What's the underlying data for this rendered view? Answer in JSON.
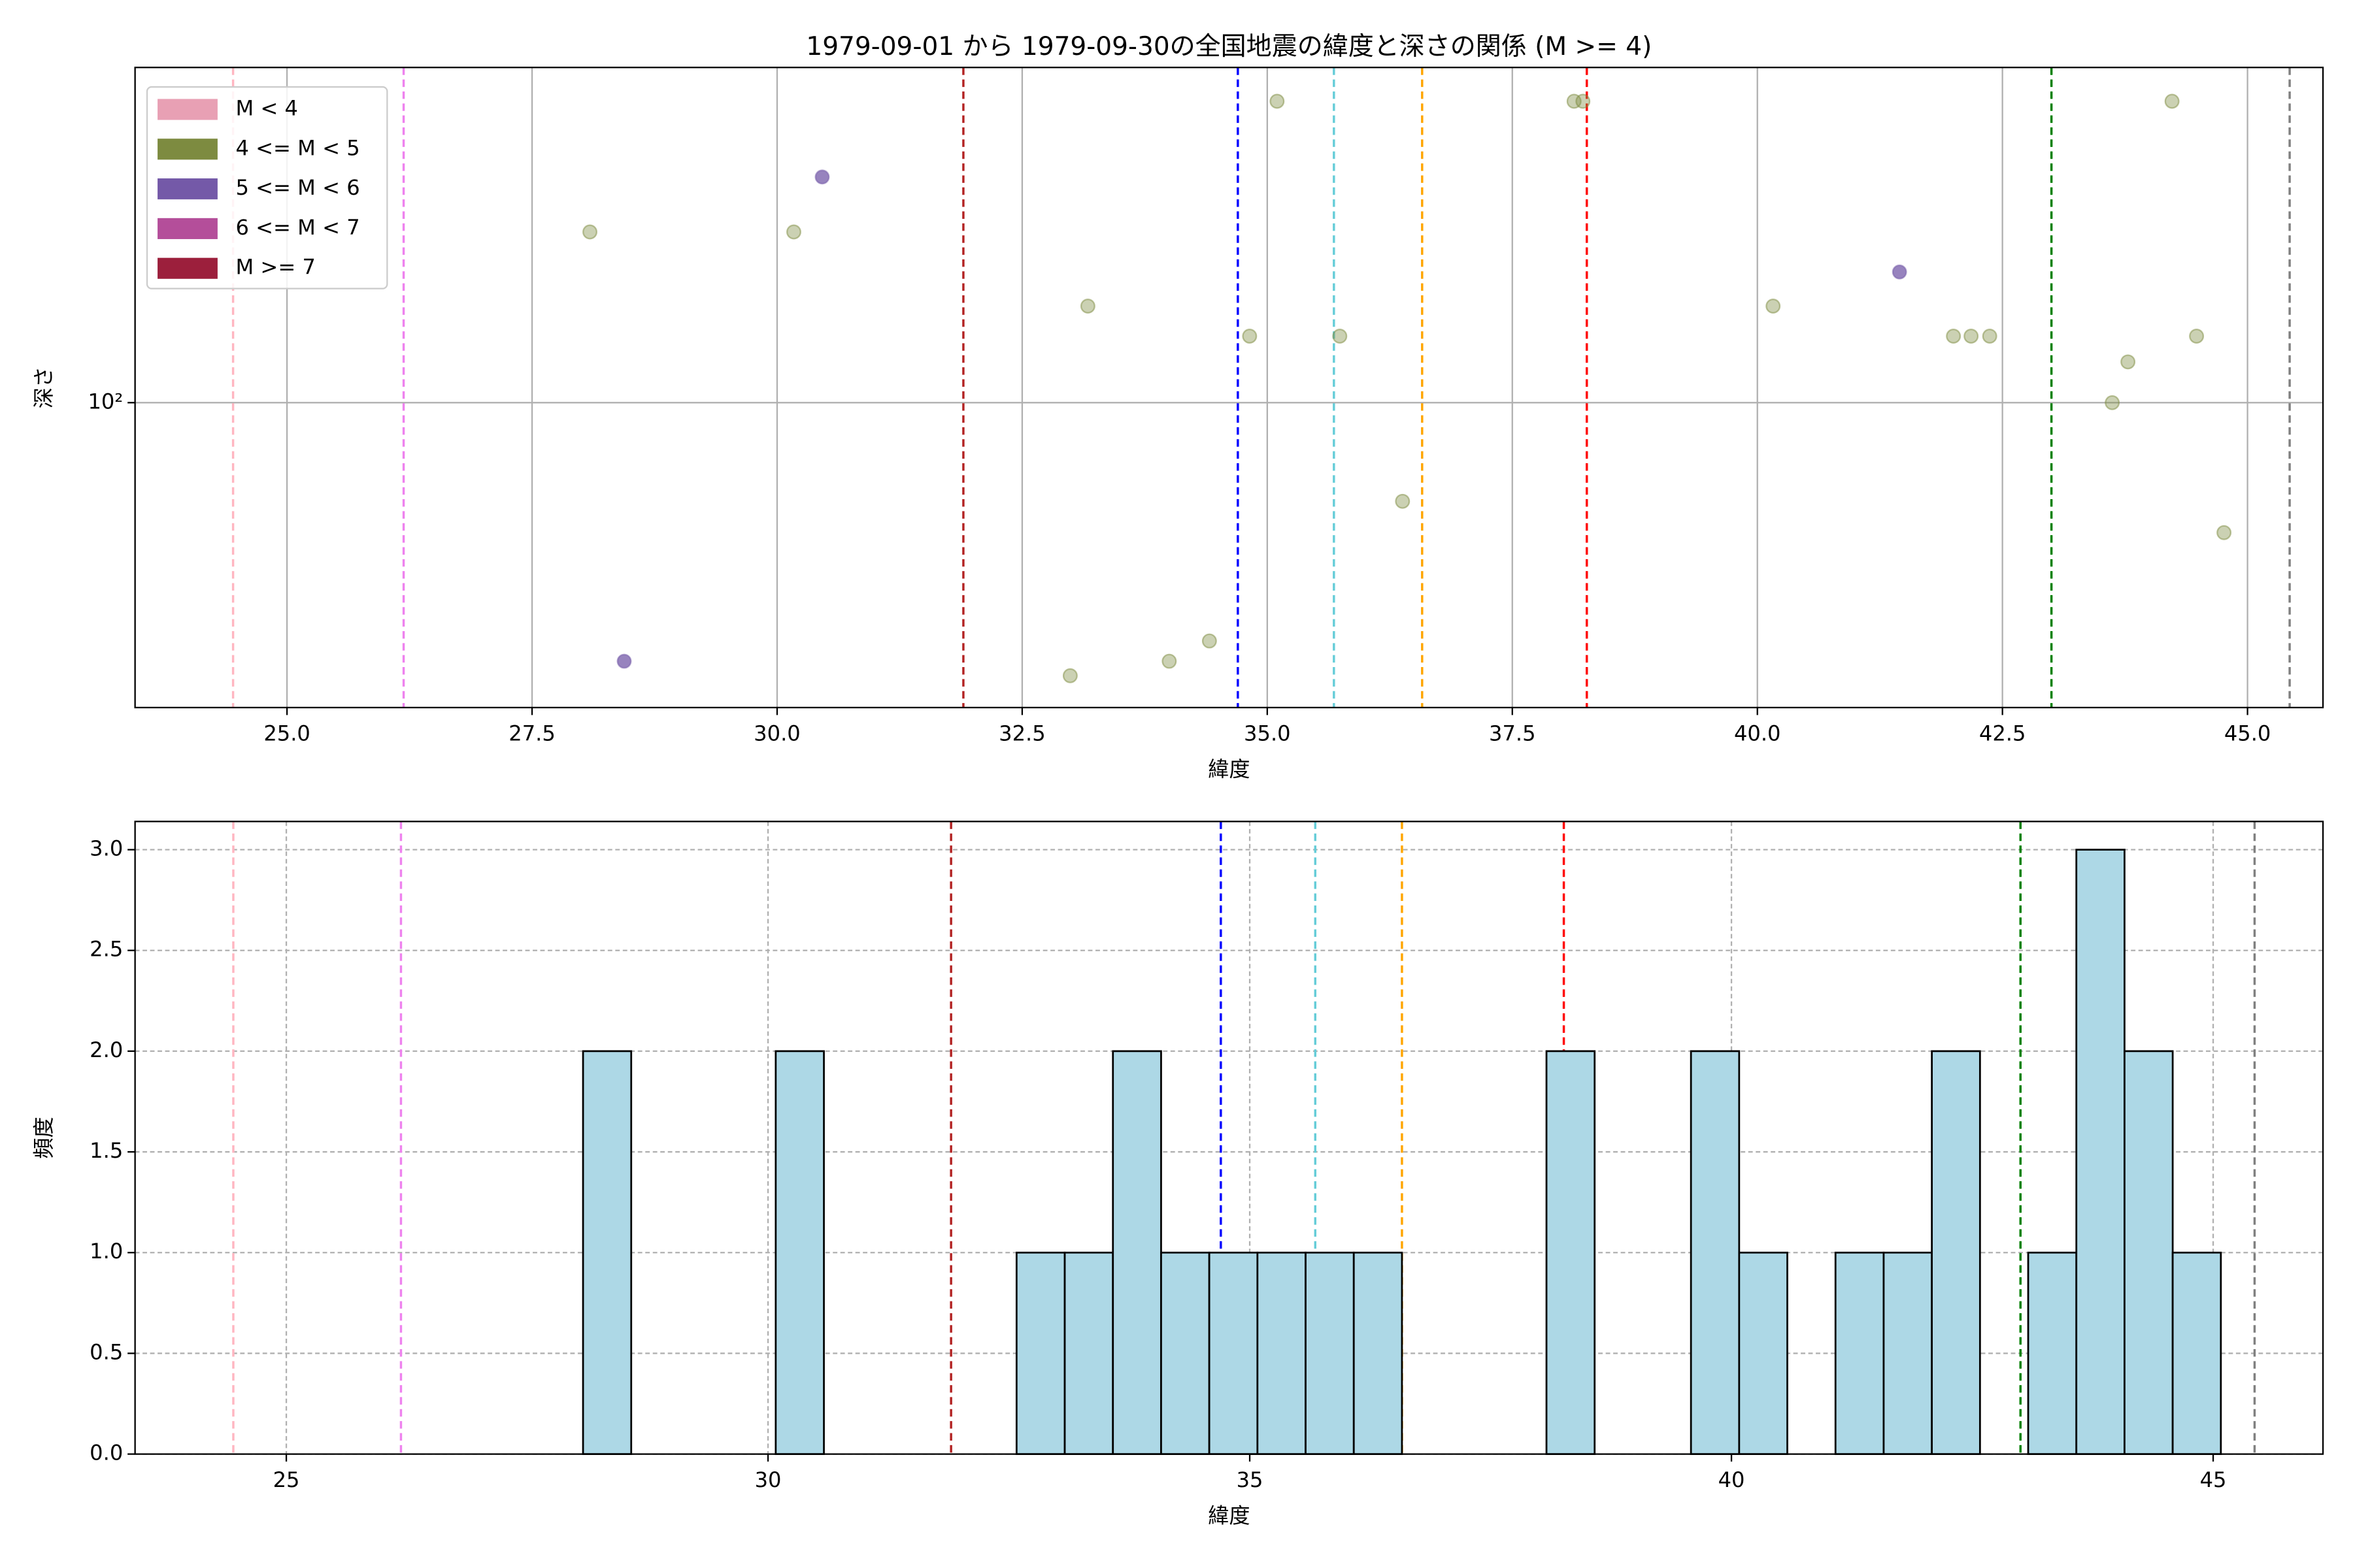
{
  "chart_data": [
    {
      "type": "scatter",
      "title": "1979-09-01 から 1979-09-30の全国地震の緯度と深さの関係 (M >= 4)",
      "xlabel": "緯度",
      "ylabel": "深さ",
      "xlim": [
        23.45,
        45.77
      ],
      "ylim": [
        29,
        390
      ],
      "log_y": true,
      "grid": true,
      "legend": "upper left",
      "xticks": [
        {
          "value": 25,
          "label": "25.0"
        },
        27.5,
        {
          "value": 30,
          "label": "30.0"
        },
        32.5,
        {
          "value": 35,
          "label": "35.0"
        },
        37.5,
        {
          "value": 40,
          "label": "40.0"
        },
        42.5,
        {
          "value": 45,
          "label": "45.0"
        }
      ],
      "yticks": [
        {
          "value": 100,
          "label": "10²"
        }
      ],
      "series": [
        {
          "name": "M < 4",
          "color": "#e8a0b4",
          "x": [],
          "values": []
        },
        {
          "name": "4 <= M < 5",
          "color": "#7d8b40",
          "x": [
            28.09,
            30.17,
            33.17,
            34.82,
            35.1,
            35.74,
            36.38,
            32.99,
            34.0,
            34.41,
            38.13,
            38.22,
            40.16,
            42.0,
            42.18,
            42.37,
            43.62,
            43.78,
            44.23,
            44.48,
            44.76
          ],
          "values": [
            200,
            200,
            148,
            131,
            340,
            131,
            67,
            33,
            35,
            38,
            340,
            340,
            148,
            131,
            131,
            131,
            100,
            118,
            340,
            131,
            59
          ]
        },
        {
          "name": "5 <= M < 6",
          "color": "#7459a8",
          "x": [
            28.44,
            30.46,
            41.45
          ],
          "values": [
            35,
            250,
            170
          ]
        },
        {
          "name": "6 <= M < 7",
          "color": "#b44e9a",
          "x": [],
          "values": []
        },
        {
          "name": "M >= 7",
          "color": "#9c1f3c",
          "x": [],
          "values": []
        }
      ],
      "vlines": [
        {
          "x": 24.45,
          "color": "#ffb6c1"
        },
        {
          "x": 26.19,
          "color": "#ee82ee"
        },
        {
          "x": 31.9,
          "color": "#b22222"
        },
        {
          "x": 34.7,
          "color": "#0000ff"
        },
        {
          "x": 35.68,
          "color": "#66cdd8"
        },
        {
          "x": 36.58,
          "color": "#ffa500"
        },
        {
          "x": 38.26,
          "color": "#ff0000"
        },
        {
          "x": 43.0,
          "color": "#008000"
        },
        {
          "x": 45.43,
          "color": "#808080"
        }
      ]
    },
    {
      "type": "histogram",
      "xlabel": "緯度",
      "ylabel": "頻度",
      "xlim": [
        23.43,
        46.14
      ],
      "ylim": [
        0,
        3.14
      ],
      "grid": true,
      "color": "#add8e6",
      "xticks": [
        25,
        30,
        35,
        40,
        45
      ],
      "yticks": [
        {
          "value": 0,
          "label": "0.0"
        },
        0.5,
        {
          "value": 1,
          "label": "1.0"
        },
        1.5,
        {
          "value": 2,
          "label": "2.0"
        },
        2.5,
        {
          "value": 3,
          "label": "3.0"
        }
      ],
      "bins": [
        28.08,
        28.58,
        29.08,
        29.58,
        30.08,
        30.58,
        31.08,
        31.58,
        32.08,
        32.58,
        33.08,
        33.58,
        34.08,
        34.58,
        35.08,
        35.58,
        36.08,
        36.58,
        37.08,
        37.58,
        38.08,
        38.58,
        39.08,
        39.58,
        40.08,
        40.58,
        41.08,
        41.58,
        42.08,
        42.58,
        43.08,
        43.58,
        44.08,
        44.58,
        45.08
      ],
      "counts": [
        2,
        0,
        0,
        0,
        2,
        0,
        0,
        0,
        0,
        1,
        1,
        2,
        1,
        1,
        1,
        1,
        1,
        0,
        0,
        0,
        2,
        0,
        0,
        2,
        1,
        0,
        1,
        1,
        2,
        0,
        1,
        3,
        2,
        1
      ],
      "vlines": [
        {
          "x": 24.45,
          "color": "#ffb6c1"
        },
        {
          "x": 26.19,
          "color": "#ee82ee"
        },
        {
          "x": 31.9,
          "color": "#b22222"
        },
        {
          "x": 34.7,
          "color": "#0000ff"
        },
        {
          "x": 35.68,
          "color": "#66cdd8"
        },
        {
          "x": 36.58,
          "color": "#ffa500"
        },
        {
          "x": 38.26,
          "color": "#ff0000"
        },
        {
          "x": 43.0,
          "color": "#008000"
        },
        {
          "x": 45.43,
          "color": "#808080"
        }
      ]
    }
  ]
}
